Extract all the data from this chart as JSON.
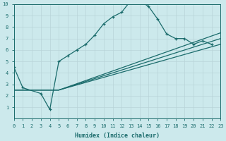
{
  "xlabel": "Humidex (Indice chaleur)",
  "xlim": [
    0,
    23
  ],
  "ylim": [
    0,
    10
  ],
  "xticks": [
    0,
    1,
    2,
    3,
    4,
    5,
    6,
    7,
    8,
    9,
    10,
    11,
    12,
    13,
    14,
    15,
    16,
    17,
    18,
    19,
    20,
    21,
    22,
    23
  ],
  "yticks": [
    1,
    2,
    3,
    4,
    5,
    6,
    7,
    8,
    9,
    10
  ],
  "bg_color": "#cce9ec",
  "grid_color": "#b8d4d8",
  "line_color": "#1a6b6b",
  "line1_x": [
    0,
    1,
    3,
    4,
    5,
    6,
    7,
    8,
    9,
    10,
    11,
    12,
    13,
    14,
    15,
    16,
    17,
    18,
    19,
    20,
    21,
    22
  ],
  "line1_y": [
    4.5,
    2.7,
    2.2,
    0.8,
    5.0,
    5.5,
    6.0,
    6.5,
    7.3,
    8.3,
    8.9,
    9.3,
    10.3,
    10.3,
    9.8,
    8.7,
    7.4,
    7.0,
    7.0,
    6.5,
    6.8,
    6.5
  ],
  "line2_x": [
    0,
    5,
    23
  ],
  "line2_y": [
    2.5,
    2.5,
    6.5
  ],
  "line3_x": [
    0,
    5,
    23
  ],
  "line3_y": [
    2.5,
    2.5,
    7.0
  ],
  "line4_x": [
    0,
    5,
    23
  ],
  "line4_y": [
    2.5,
    2.5,
    7.5
  ]
}
